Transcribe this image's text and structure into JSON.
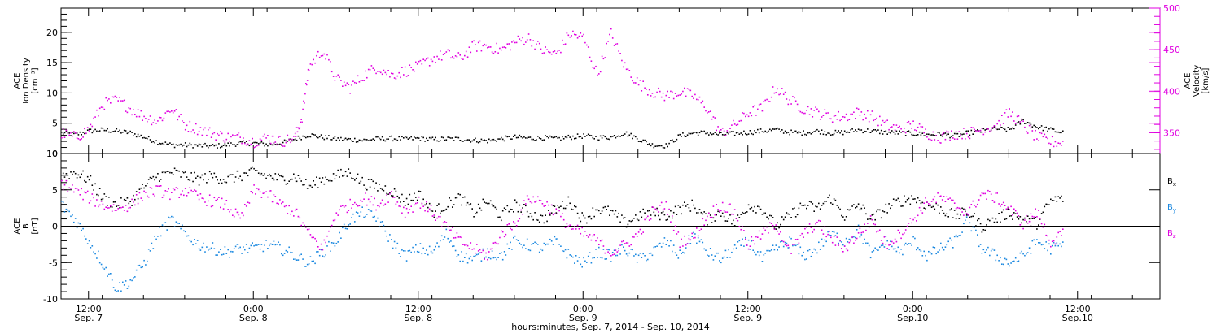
{
  "colors": {
    "black": "#000000",
    "magenta": "#e000e0",
    "blue": "#1a88e0"
  },
  "x_ticks": [
    {
      "h": 12,
      "time": "12:00",
      "date": "Sep. 7"
    },
    {
      "h": 24,
      "time": "0:00",
      "date": "Sep. 8"
    },
    {
      "h": 36,
      "time": "12:00",
      "date": "Sep. 8"
    },
    {
      "h": 48,
      "time": "0:00",
      "date": "Sep. 9"
    },
    {
      "h": 60,
      "time": "12:00",
      "date": "Sep. 9"
    },
    {
      "h": 72,
      "time": "0:00",
      "date": "Sep.10"
    },
    {
      "h": 84,
      "time": "12:00",
      "date": "Sep.10"
    }
  ],
  "x_axis_label": "hours:minutes, Sep. 7, 2014 - Sep. 10, 2014",
  "chart_data": [
    {
      "type": "scatter",
      "name": "top",
      "x_range_hours": [
        10,
        90
      ],
      "left_axis": {
        "label_lines": [
          "ACE",
          "Ion Density",
          "[cm⁻³]"
        ],
        "ylim": [
          0,
          24
        ],
        "ticks": [
          0,
          5,
          10,
          15,
          20
        ]
      },
      "right_axis": {
        "label_lines": [
          "ACE",
          "Velocity",
          "[km/s]"
        ],
        "ylim": [
          325,
          500
        ],
        "ticks": [
          350,
          400,
          450,
          500
        ]
      },
      "series": [
        {
          "key": "density",
          "axis": "left",
          "color": "#000000",
          "x": [
            10,
            11,
            12,
            13,
            14,
            15,
            16,
            17,
            18,
            19,
            20,
            21,
            22,
            23,
            24,
            25,
            26,
            27,
            28,
            29,
            30,
            31,
            32,
            33,
            34,
            35,
            36,
            37,
            38,
            39,
            40,
            41,
            42,
            43,
            44,
            45,
            46,
            47,
            48,
            49,
            50,
            51,
            52,
            53,
            54,
            55,
            56,
            57,
            58,
            59,
            60,
            61,
            62,
            63,
            64,
            65,
            66,
            67,
            68,
            69,
            70,
            71,
            72,
            73,
            74,
            75,
            76,
            77,
            78,
            79,
            80,
            81,
            82,
            83
          ],
          "y": [
            3.5,
            3.2,
            3.8,
            4.0,
            3.8,
            3.5,
            2.8,
            2.0,
            1.5,
            1.5,
            1.4,
            1.3,
            1.5,
            1.8,
            1.8,
            1.6,
            1.8,
            2.5,
            3.2,
            2.8,
            2.5,
            2.4,
            2.3,
            2.5,
            2.6,
            2.5,
            2.6,
            2.4,
            2.5,
            2.5,
            2.3,
            2.2,
            2.5,
            2.8,
            2.6,
            2.7,
            2.5,
            2.8,
            3.0,
            2.7,
            2.8,
            3.5,
            2.5,
            1.5,
            1.4,
            3.0,
            3.5,
            3.5,
            3.2,
            3.4,
            3.6,
            3.8,
            4.0,
            3.6,
            3.5,
            3.8,
            3.5,
            3.6,
            4.0,
            3.8,
            3.6,
            3.5,
            3.4,
            3.2,
            3.3,
            3.0,
            3.5,
            3.8,
            4.2,
            4.0,
            5.5,
            4.5,
            4.0,
            3.5
          ]
        },
        {
          "key": "velocity",
          "axis": "right",
          "color": "#e000e0",
          "x": [
            10,
            11,
            12,
            13,
            14,
            15,
            16,
            17,
            18,
            19,
            20,
            21,
            22,
            23,
            24,
            25,
            26,
            27,
            27.5,
            28,
            29,
            30,
            31,
            32,
            33,
            34,
            35,
            36,
            37,
            38,
            39,
            40,
            41,
            42,
            43,
            44,
            45,
            46,
            47,
            48,
            49,
            50,
            51,
            52,
            53,
            54,
            55,
            56,
            57,
            58,
            59,
            60,
            61,
            62,
            63,
            64,
            65,
            66,
            67,
            68,
            69,
            70,
            71,
            72,
            73,
            74,
            75,
            76,
            77,
            78,
            79,
            80,
            81,
            82,
            83
          ],
          "y": [
            350,
            345,
            355,
            385,
            390,
            380,
            370,
            365,
            380,
            360,
            355,
            350,
            345,
            345,
            340,
            345,
            340,
            345,
            370,
            430,
            450,
            415,
            405,
            420,
            430,
            420,
            425,
            430,
            440,
            445,
            440,
            455,
            455,
            450,
            460,
            465,
            450,
            445,
            470,
            465,
            420,
            470,
            430,
            410,
            400,
            395,
            400,
            395,
            380,
            350,
            360,
            375,
            380,
            405,
            390,
            380,
            375,
            370,
            370,
            375,
            370,
            360,
            355,
            360,
            350,
            345,
            350,
            350,
            355,
            360,
            375,
            360,
            345,
            340,
            338
          ]
        }
      ]
    },
    {
      "type": "scatter",
      "name": "bottom",
      "x_range_hours": [
        10,
        90
      ],
      "left_axis": {
        "label_lines": [
          "ACE",
          "B",
          "[nT]"
        ],
        "ylim": [
          -10,
          10
        ],
        "ticks": [
          -10,
          -5,
          0,
          5,
          10
        ]
      },
      "zero_line": true,
      "legend_placement": "right",
      "series": [
        {
          "key": "bx",
          "label": "B",
          "sub": "x",
          "color": "#000000",
          "x": [
            10,
            11,
            12,
            13,
            14,
            15,
            16,
            17,
            18,
            19,
            20,
            21,
            22,
            23,
            24,
            25,
            26,
            27,
            28,
            29,
            30,
            31,
            32,
            33,
            34,
            35,
            36,
            37,
            38,
            39,
            40,
            41,
            42,
            43,
            44,
            45,
            46,
            47,
            48,
            49,
            50,
            51,
            52,
            53,
            54,
            55,
            56,
            57,
            58,
            59,
            60,
            61,
            62,
            63,
            64,
            65,
            66,
            67,
            68,
            69,
            70,
            71,
            72,
            73,
            74,
            75,
            76,
            77,
            78,
            79,
            80,
            81,
            82,
            83
          ],
          "y": [
            7.0,
            7.5,
            6.5,
            4.0,
            3.0,
            3.5,
            5.5,
            7.0,
            7.5,
            7.0,
            6.5,
            7.0,
            6.5,
            7.0,
            7.5,
            7.0,
            6.5,
            7.0,
            5.5,
            6.5,
            7.0,
            7.5,
            6.0,
            5.5,
            5.0,
            3.5,
            4.5,
            2.0,
            3.0,
            4.0,
            2.0,
            3.5,
            1.5,
            3.0,
            2.0,
            1.0,
            2.5,
            3.5,
            1.0,
            2.5,
            2.0,
            0.5,
            1.5,
            2.0,
            1.5,
            2.5,
            3.0,
            1.0,
            2.0,
            0.5,
            3.0,
            2.5,
            0.0,
            1.5,
            3.0,
            2.5,
            4.0,
            1.5,
            3.0,
            1.0,
            2.5,
            3.5,
            4.0,
            3.0,
            2.5,
            1.5,
            2.0,
            0.0,
            1.0,
            2.0,
            1.0,
            0.5,
            3.5,
            4.0
          ]
        },
        {
          "key": "by",
          "label": "B",
          "sub": "y",
          "color": "#1a88e0",
          "x": [
            10,
            11,
            12,
            13,
            14,
            15,
            16,
            17,
            18,
            19,
            20,
            21,
            22,
            23,
            24,
            25,
            26,
            27,
            28,
            29,
            30,
            31,
            32,
            33,
            34,
            35,
            36,
            37,
            38,
            39,
            40,
            41,
            42,
            43,
            44,
            45,
            46,
            47,
            48,
            49,
            50,
            51,
            52,
            53,
            54,
            55,
            56,
            57,
            58,
            59,
            60,
            61,
            62,
            63,
            64,
            65,
            66,
            67,
            68,
            69,
            70,
            71,
            72,
            73,
            74,
            75,
            76,
            77,
            78,
            79,
            80,
            81,
            82,
            83
          ],
          "y": [
            3.0,
            1.0,
            -2.0,
            -5.0,
            -8.5,
            -7.5,
            -5.0,
            -1.0,
            1.0,
            -1.0,
            -2.5,
            -3.0,
            -3.5,
            -3.0,
            -3.0,
            -2.5,
            -3.0,
            -4.0,
            -5.0,
            -3.5,
            -2.0,
            1.0,
            2.0,
            1.0,
            -2.0,
            -4.0,
            -3.0,
            -3.5,
            -1.0,
            -4.0,
            -4.5,
            -3.5,
            -4.0,
            -2.0,
            -2.5,
            -3.0,
            -2.0,
            -4.0,
            -5.0,
            -3.5,
            -4.0,
            -3.0,
            -4.5,
            -3.5,
            -2.0,
            -4.0,
            -1.0,
            -3.5,
            -4.5,
            -3.0,
            -2.0,
            -4.5,
            -3.0,
            -2.0,
            -4.0,
            -3.0,
            -1.0,
            -2.0,
            -0.5,
            -4.0,
            -2.0,
            -3.5,
            -2.0,
            -4.0,
            -3.0,
            -2.0,
            1.0,
            -3.0,
            -4.0,
            -5.0,
            -4.0,
            -2.0,
            -3.0,
            -2.5
          ]
        },
        {
          "key": "bz",
          "label": "B",
          "sub": "z",
          "color": "#e000e0",
          "x": [
            10,
            11,
            12,
            13,
            14,
            15,
            16,
            17,
            18,
            19,
            20,
            21,
            22,
            23,
            24,
            25,
            26,
            27,
            28,
            29,
            30,
            31,
            32,
            33,
            34,
            35,
            36,
            37,
            38,
            39,
            40,
            41,
            42,
            43,
            44,
            45,
            46,
            47,
            48,
            49,
            50,
            51,
            52,
            53,
            54,
            55,
            56,
            57,
            58,
            59,
            60,
            61,
            62,
            63,
            64,
            65,
            66,
            67,
            68,
            69,
            70,
            71,
            72,
            73,
            74,
            75,
            76,
            77,
            78,
            79,
            80,
            81,
            82,
            83
          ],
          "y": [
            6.0,
            5.0,
            4.0,
            3.0,
            2.5,
            3.0,
            4.5,
            5.0,
            4.5,
            5.0,
            4.0,
            3.5,
            3.0,
            1.0,
            5.0,
            4.5,
            3.0,
            2.0,
            -1.0,
            -3.0,
            2.0,
            3.0,
            4.0,
            3.0,
            4.5,
            2.0,
            3.5,
            2.0,
            0.0,
            -2.0,
            -3.0,
            -4.0,
            -1.0,
            0.5,
            4.0,
            3.5,
            2.0,
            0.0,
            -1.0,
            -2.0,
            -3.5,
            -2.5,
            -1.0,
            2.0,
            3.0,
            -2.0,
            -1.5,
            1.5,
            3.0,
            2.0,
            -2.5,
            -1.0,
            0.5,
            -3.5,
            -1.0,
            0.5,
            -1.5,
            -3.0,
            -1.0,
            1.0,
            -2.5,
            -1.0,
            1.0,
            3.5,
            4.0,
            3.0,
            2.0,
            4.5,
            4.0,
            2.5,
            0.5,
            2.0,
            -2.0,
            -1.0
          ]
        }
      ]
    }
  ]
}
